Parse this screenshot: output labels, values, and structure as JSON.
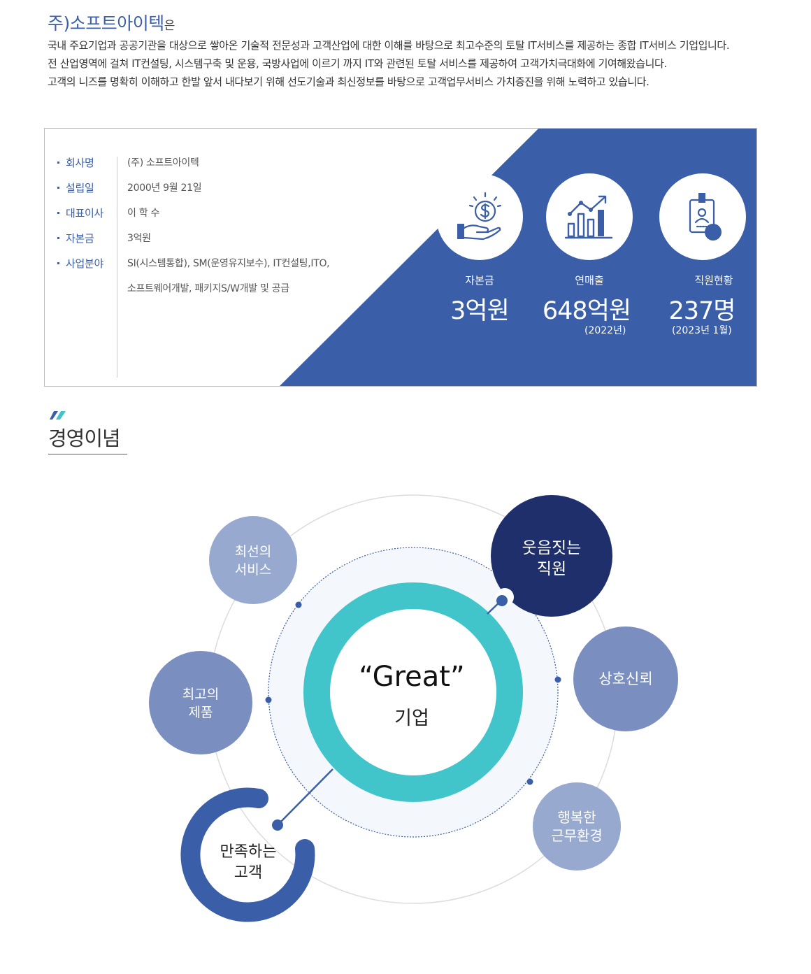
{
  "intro": {
    "title": "주)소프트아이텍",
    "title_suffix": "은",
    "paragraphs": [
      "국내 주요기업과 공공기관을 대상으로 쌓아온 기술적 전문성과 고객산업에 대한 이해를 바탕으로 최고수준의 토탈 IT서비스를 제공하는 종합 IT서비스 기업입니다.",
      "전 산업영역에 걸쳐 IT컨설팅, 시스템구축 및 운용, 국방사업에 이르기 까지 IT와 관련된 토탈 서비스를 제공하여 고객가치극대화에 기여해왔습니다.",
      "고객의 니즈를 명확히 이해하고 한발 앞서 내다보기 위해 선도기술과 최신정보를 바탕으로 고객업무서비스 가치증진을 위해 노력하고 있습니다."
    ]
  },
  "company_info": {
    "rows": [
      {
        "label": "회사명",
        "value": "(주) 소프트아이텍"
      },
      {
        "label": "설립일",
        "value": "2000년 9월 21일"
      },
      {
        "label": "대표이사",
        "value": "이 학 수"
      },
      {
        "label": "자본금",
        "value": "3억원"
      },
      {
        "label": "사업분야",
        "value": "SI(시스템통합), SM(운영유지보수), IT컨설팅,ITO,"
      }
    ],
    "business_line2": "소프트웨어개발, 패키지S/W개발 및 공급"
  },
  "stats": [
    {
      "label": "자본금",
      "value": "3억원",
      "note": "",
      "icon": "money-hand-icon"
    },
    {
      "label": "연매출",
      "value": "648억원",
      "note": "(2022년)",
      "icon": "bar-chart-growth-icon"
    },
    {
      "label": "직원현황",
      "value": "237명",
      "note": "(2023년 1월)",
      "icon": "employee-id-badge-icon"
    }
  ],
  "philosophy": {
    "section_title": "경영이념",
    "center_quote": "“Great”",
    "center_sub": "기업",
    "values": [
      {
        "text": "최선의\n서비스"
      },
      {
        "text": "웃음짓는\n직원"
      },
      {
        "text": "최고의\n제품"
      },
      {
        "text": "상호신뢰"
      },
      {
        "text": "행복한\n근무환경"
      },
      {
        "text": "만족하는\n고객"
      }
    ]
  },
  "colors": {
    "brand_blue": "#3a5ea8",
    "navy": "#1e2f6b",
    "teal": "#41c5ca",
    "light_blue": "#97a9cf",
    "mid_blue": "#7a8fc0"
  }
}
